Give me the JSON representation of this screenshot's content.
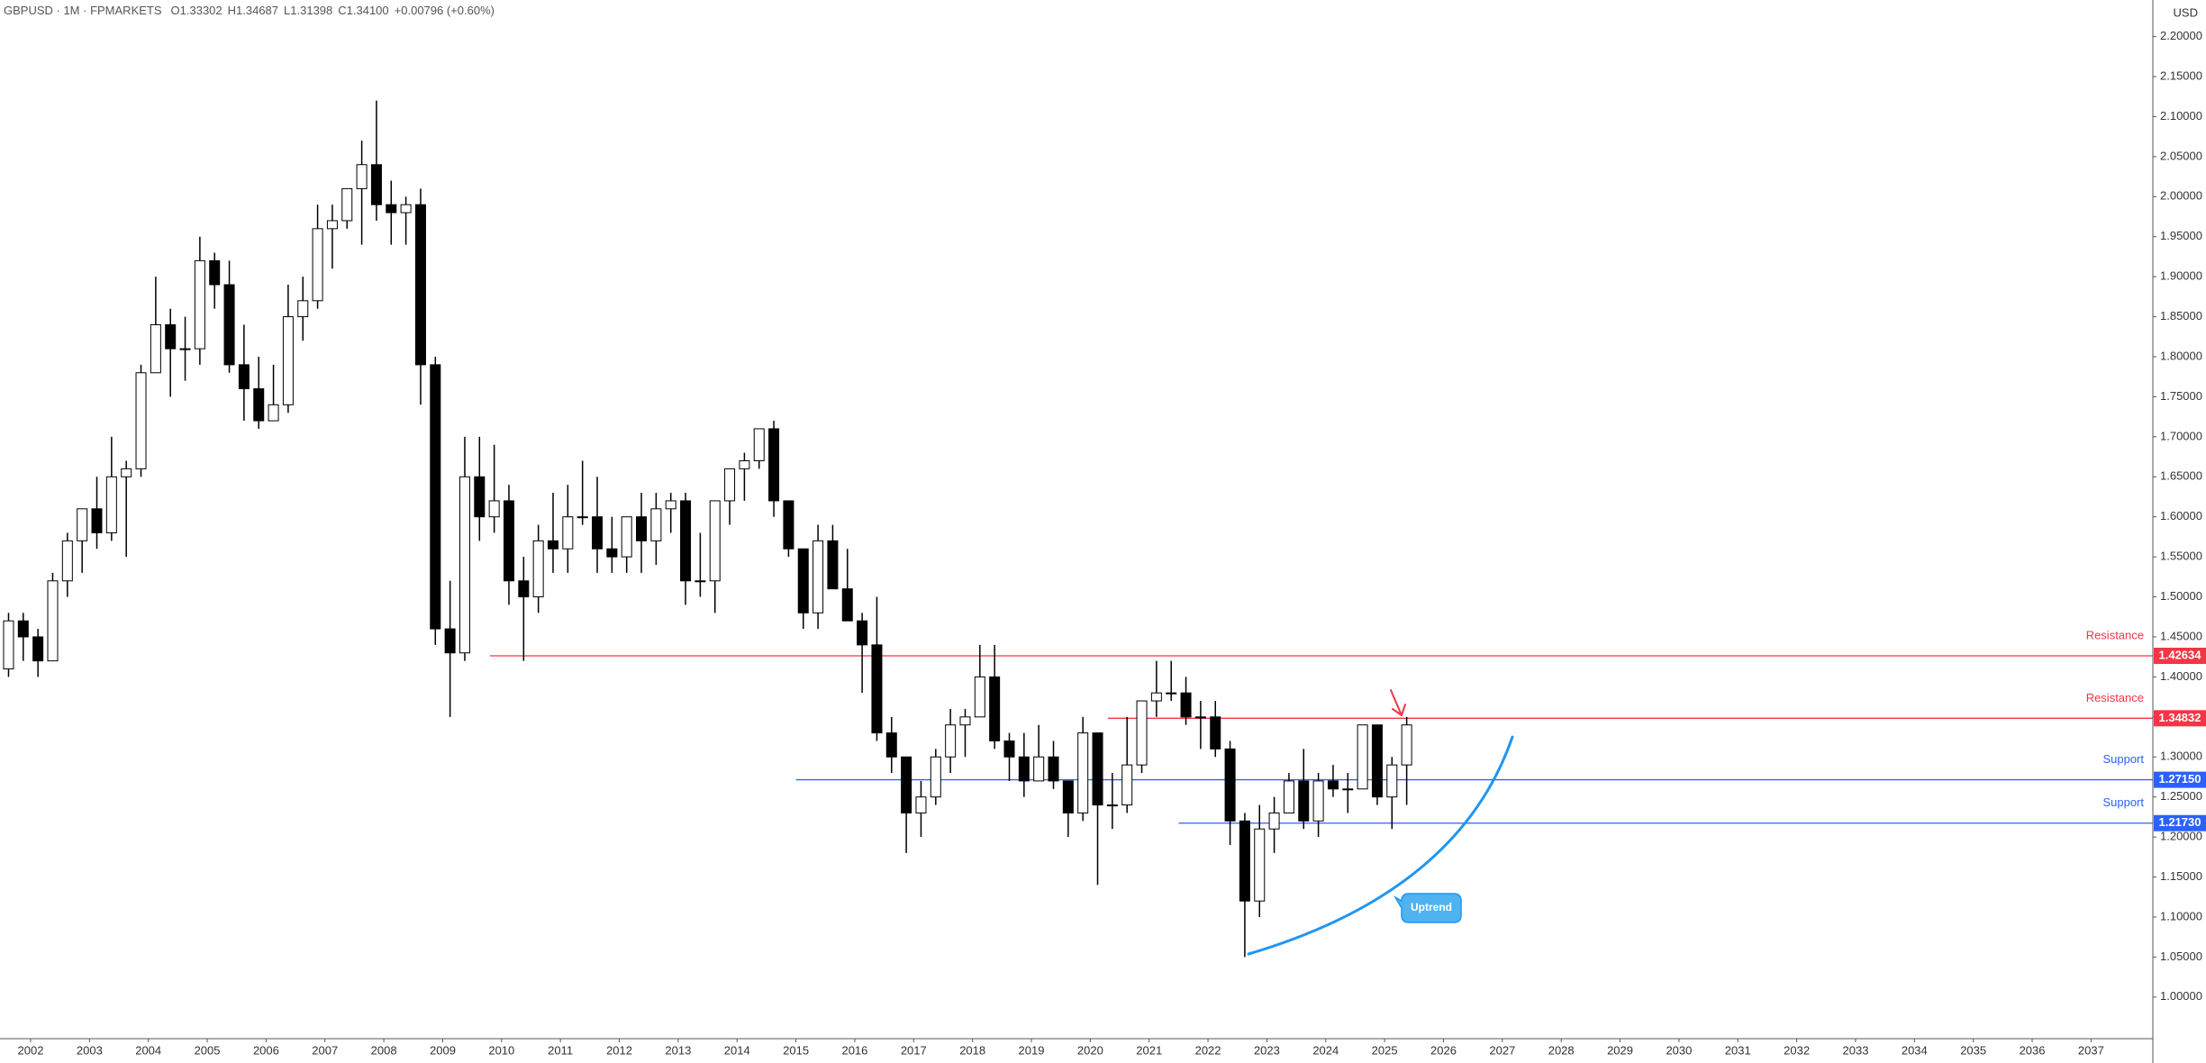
{
  "chart_data": {
    "type": "candlestick",
    "title": "GBPUSD · 1M · FPMARKETS",
    "header": {
      "open": "O1.33302",
      "high": "H1.34687",
      "low": "L1.31398",
      "close": "C1.34100",
      "change": "+0.00796 (+0.60%)"
    },
    "currency": "USD",
    "up_color": "#ffffff",
    "down_color": "#000000",
    "outline_color": "#000000",
    "x": [
      2001.625,
      2001.875,
      2002.125,
      2002.375,
      2002.625,
      2002.875,
      2003.125,
      2003.375,
      2003.625,
      2003.875,
      2004.125,
      2004.375,
      2004.625,
      2004.875,
      2005.125,
      2005.375,
      2005.625,
      2005.875,
      2006.125,
      2006.375,
      2006.625,
      2006.875,
      2007.125,
      2007.375,
      2007.625,
      2007.875,
      2008.125,
      2008.375,
      2008.625,
      2008.875,
      2009.125,
      2009.375,
      2009.625,
      2009.875,
      2010.125,
      2010.375,
      2010.625,
      2010.875,
      2011.125,
      2011.375,
      2011.625,
      2011.875,
      2012.125,
      2012.375,
      2012.625,
      2012.875,
      2013.125,
      2013.375,
      2013.625,
      2013.875,
      2014.125,
      2014.375,
      2014.625,
      2014.875,
      2015.125,
      2015.375,
      2015.625,
      2015.875,
      2016.125,
      2016.375,
      2016.625,
      2016.875,
      2017.125,
      2017.375,
      2017.625,
      2017.875,
      2018.125,
      2018.375,
      2018.625,
      2018.875,
      2019.125,
      2019.375,
      2019.625,
      2019.875,
      2020.125,
      2020.375,
      2020.625,
      2020.875,
      2021.125,
      2021.375,
      2021.625,
      2021.875,
      2022.125,
      2022.375,
      2022.625,
      2022.875,
      2023.125,
      2023.375,
      2023.625,
      2023.875,
      2024.125,
      2024.375,
      2024.625,
      2024.875,
      2025.125,
      2025.375
    ],
    "ohlc": [
      [
        1.41,
        1.48,
        1.4,
        1.47
      ],
      [
        1.47,
        1.48,
        1.42,
        1.45
      ],
      [
        1.45,
        1.46,
        1.4,
        1.42
      ],
      [
        1.42,
        1.53,
        1.42,
        1.52
      ],
      [
        1.52,
        1.58,
        1.5,
        1.57
      ],
      [
        1.57,
        1.61,
        1.53,
        1.61
      ],
      [
        1.61,
        1.65,
        1.56,
        1.58
      ],
      [
        1.58,
        1.7,
        1.57,
        1.65
      ],
      [
        1.65,
        1.67,
        1.55,
        1.66
      ],
      [
        1.66,
        1.79,
        1.65,
        1.78
      ],
      [
        1.78,
        1.9,
        1.78,
        1.84
      ],
      [
        1.84,
        1.86,
        1.75,
        1.81
      ],
      [
        1.81,
        1.85,
        1.77,
        1.81
      ],
      [
        1.81,
        1.95,
        1.79,
        1.92
      ],
      [
        1.92,
        1.93,
        1.86,
        1.89
      ],
      [
        1.89,
        1.92,
        1.78,
        1.79
      ],
      [
        1.79,
        1.84,
        1.72,
        1.76
      ],
      [
        1.76,
        1.8,
        1.71,
        1.72
      ],
      [
        1.72,
        1.79,
        1.72,
        1.74
      ],
      [
        1.74,
        1.89,
        1.73,
        1.85
      ],
      [
        1.85,
        1.9,
        1.82,
        1.87
      ],
      [
        1.87,
        1.99,
        1.86,
        1.96
      ],
      [
        1.96,
        1.99,
        1.91,
        1.97
      ],
      [
        1.97,
        2.01,
        1.96,
        2.01
      ],
      [
        2.01,
        2.07,
        1.94,
        2.04
      ],
      [
        2.04,
        2.12,
        1.97,
        1.99
      ],
      [
        1.99,
        2.02,
        1.94,
        1.98
      ],
      [
        1.98,
        2.0,
        1.94,
        1.99
      ],
      [
        1.99,
        2.01,
        1.74,
        1.79
      ],
      [
        1.79,
        1.8,
        1.44,
        1.46
      ],
      [
        1.46,
        1.52,
        1.35,
        1.43
      ],
      [
        1.43,
        1.7,
        1.42,
        1.65
      ],
      [
        1.65,
        1.7,
        1.57,
        1.6
      ],
      [
        1.6,
        1.69,
        1.58,
        1.62
      ],
      [
        1.62,
        1.64,
        1.49,
        1.52
      ],
      [
        1.52,
        1.55,
        1.42,
        1.5
      ],
      [
        1.5,
        1.59,
        1.48,
        1.57
      ],
      [
        1.57,
        1.63,
        1.53,
        1.56
      ],
      [
        1.56,
        1.64,
        1.53,
        1.6
      ],
      [
        1.6,
        1.67,
        1.59,
        1.6
      ],
      [
        1.6,
        1.65,
        1.53,
        1.56
      ],
      [
        1.56,
        1.6,
        1.53,
        1.55
      ],
      [
        1.55,
        1.6,
        1.53,
        1.6
      ],
      [
        1.6,
        1.63,
        1.53,
        1.57
      ],
      [
        1.57,
        1.63,
        1.54,
        1.61
      ],
      [
        1.61,
        1.63,
        1.58,
        1.62
      ],
      [
        1.62,
        1.63,
        1.49,
        1.52
      ],
      [
        1.52,
        1.58,
        1.5,
        1.52
      ],
      [
        1.52,
        1.62,
        1.48,
        1.62
      ],
      [
        1.62,
        1.66,
        1.59,
        1.66
      ],
      [
        1.66,
        1.68,
        1.62,
        1.67
      ],
      [
        1.67,
        1.71,
        1.66,
        1.71
      ],
      [
        1.71,
        1.72,
        1.6,
        1.62
      ],
      [
        1.62,
        1.62,
        1.55,
        1.56
      ],
      [
        1.56,
        1.56,
        1.46,
        1.48
      ],
      [
        1.48,
        1.59,
        1.46,
        1.57
      ],
      [
        1.57,
        1.59,
        1.51,
        1.51
      ],
      [
        1.51,
        1.56,
        1.47,
        1.47
      ],
      [
        1.47,
        1.48,
        1.38,
        1.44
      ],
      [
        1.44,
        1.5,
        1.32,
        1.33
      ],
      [
        1.33,
        1.35,
        1.28,
        1.3
      ],
      [
        1.3,
        1.3,
        1.18,
        1.23
      ],
      [
        1.23,
        1.27,
        1.2,
        1.25
      ],
      [
        1.25,
        1.31,
        1.24,
        1.3
      ],
      [
        1.3,
        1.36,
        1.28,
        1.34
      ],
      [
        1.34,
        1.36,
        1.3,
        1.35
      ],
      [
        1.35,
        1.44,
        1.35,
        1.4
      ],
      [
        1.4,
        1.44,
        1.31,
        1.32
      ],
      [
        1.32,
        1.33,
        1.27,
        1.3
      ],
      [
        1.3,
        1.33,
        1.25,
        1.27
      ],
      [
        1.27,
        1.34,
        1.27,
        1.3
      ],
      [
        1.3,
        1.32,
        1.26,
        1.27
      ],
      [
        1.27,
        1.27,
        1.2,
        1.23
      ],
      [
        1.23,
        1.35,
        1.22,
        1.33
      ],
      [
        1.33,
        1.33,
        1.14,
        1.24
      ],
      [
        1.24,
        1.28,
        1.21,
        1.24
      ],
      [
        1.24,
        1.35,
        1.23,
        1.29
      ],
      [
        1.29,
        1.37,
        1.28,
        1.37
      ],
      [
        1.37,
        1.42,
        1.35,
        1.38
      ],
      [
        1.38,
        1.42,
        1.37,
        1.38
      ],
      [
        1.38,
        1.4,
        1.34,
        1.35
      ],
      [
        1.35,
        1.37,
        1.31,
        1.35
      ],
      [
        1.35,
        1.37,
        1.3,
        1.31
      ],
      [
        1.31,
        1.32,
        1.19,
        1.22
      ],
      [
        1.22,
        1.23,
        1.05,
        1.12
      ],
      [
        1.12,
        1.24,
        1.1,
        1.21
      ],
      [
        1.21,
        1.25,
        1.18,
        1.23
      ],
      [
        1.23,
        1.28,
        1.23,
        1.27
      ],
      [
        1.27,
        1.31,
        1.21,
        1.22
      ],
      [
        1.22,
        1.28,
        1.2,
        1.27
      ],
      [
        1.27,
        1.29,
        1.25,
        1.26
      ],
      [
        1.26,
        1.28,
        1.23,
        1.26
      ],
      [
        1.26,
        1.34,
        1.26,
        1.34
      ],
      [
        1.34,
        1.34,
        1.24,
        1.25
      ],
      [
        1.25,
        1.3,
        1.21,
        1.29
      ],
      [
        1.29,
        1.35,
        1.24,
        1.34
      ]
    ],
    "levels": {
      "names": [
        "Resistance",
        "Resistance",
        "Support",
        "Support"
      ],
      "values": [
        1.42634,
        1.34832,
        1.2715,
        1.2173
      ],
      "value_labels": [
        "1.42634",
        "1.34832",
        "1.27150",
        "1.21730"
      ],
      "colors": [
        "#f23645",
        "#f23645",
        "#2962ff",
        "#2962ff"
      ],
      "x_start": [
        2009.8,
        2020.3,
        2015.0,
        2021.5
      ]
    },
    "annotation": "Uptrend",
    "xlim": [
      2001.48,
      2038.05
    ],
    "xticks": [
      2002,
      2003,
      2004,
      2005,
      2006,
      2007,
      2008,
      2009,
      2010,
      2011,
      2012,
      2013,
      2014,
      2015,
      2016,
      2017,
      2018,
      2019,
      2020,
      2021,
      2022,
      2023,
      2024,
      2025,
      2026,
      2027,
      2028,
      2029,
      2030,
      2031,
      2032,
      2033,
      2034,
      2035,
      2036,
      2037
    ],
    "ylim": [
      0.948,
      2.2457
    ],
    "yticks": [
      {
        "value": 1.0,
        "label": "1.00000"
      },
      {
        "value": 1.05,
        "label": "1.05000"
      },
      {
        "value": 1.1,
        "label": "1.10000"
      },
      {
        "value": 1.15,
        "label": "1.15000"
      },
      {
        "value": 1.2,
        "label": "1.20000"
      },
      {
        "value": 1.25,
        "label": "1.25000"
      },
      {
        "value": 1.3,
        "label": "1.30000"
      },
      {
        "value": 1.35,
        "label": "1.35000"
      },
      {
        "value": 1.4,
        "label": "1.40000"
      },
      {
        "value": 1.45,
        "label": "1.45000"
      },
      {
        "value": 1.5,
        "label": "1.50000"
      },
      {
        "value": 1.55,
        "label": "1.55000"
      },
      {
        "value": 1.6,
        "label": "1.60000"
      },
      {
        "value": 1.65,
        "label": "1.65000"
      },
      {
        "value": 1.7,
        "label": "1.70000"
      },
      {
        "value": 1.75,
        "label": "1.75000"
      },
      {
        "value": 1.8,
        "label": "1.80000"
      },
      {
        "value": 1.85,
        "label": "1.85000"
      },
      {
        "value": 1.9,
        "label": "1.90000"
      },
      {
        "value": 1.95,
        "label": "1.95000"
      },
      {
        "value": 2.0,
        "label": "2.00000"
      },
      {
        "value": 2.05,
        "label": "2.05000"
      },
      {
        "value": 2.1,
        "label": "2.10000"
      },
      {
        "value": 2.15,
        "label": "2.15000"
      },
      {
        "value": 2.2,
        "label": "2.20000"
      }
    ]
  }
}
